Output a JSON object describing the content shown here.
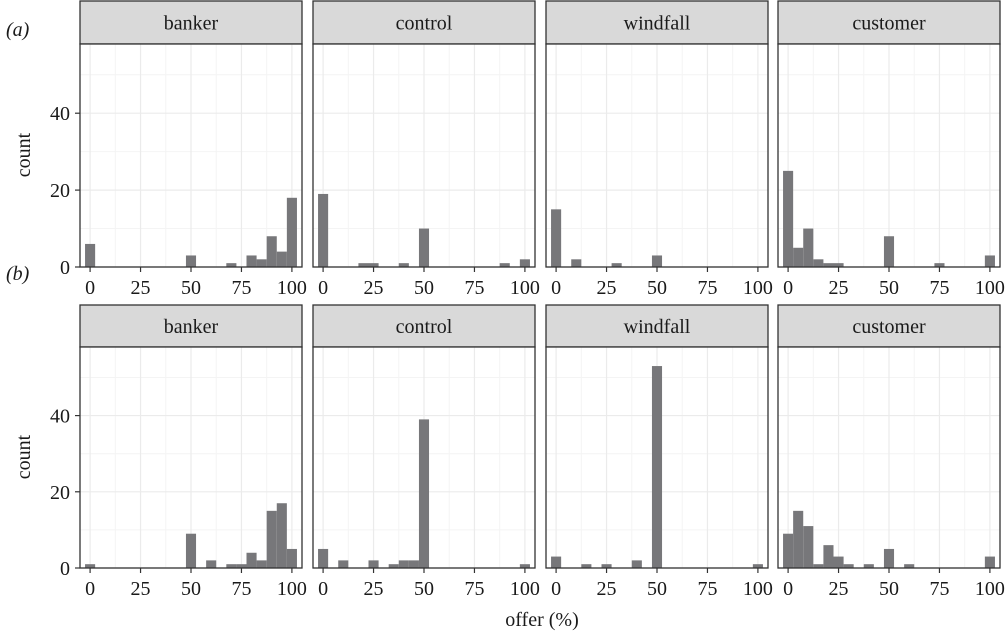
{
  "chart_data": [
    {
      "type": "bar",
      "panel_label": "(a)",
      "ylabel": "count",
      "ylim": [
        0,
        58
      ],
      "yticks": [
        0,
        20,
        40
      ],
      "xlim": [
        -5,
        105
      ],
      "xticks": [
        0,
        25,
        50,
        75,
        100
      ],
      "bin_width": 5,
      "facets": [
        {
          "name": "banker",
          "bars": [
            {
              "x": 0,
              "y": 6
            },
            {
              "x": 50,
              "y": 3
            },
            {
              "x": 70,
              "y": 1
            },
            {
              "x": 80,
              "y": 3
            },
            {
              "x": 85,
              "y": 2
            },
            {
              "x": 90,
              "y": 8
            },
            {
              "x": 95,
              "y": 4
            },
            {
              "x": 100,
              "y": 18
            }
          ]
        },
        {
          "name": "control",
          "bars": [
            {
              "x": 0,
              "y": 19
            },
            {
              "x": 20,
              "y": 1
            },
            {
              "x": 25,
              "y": 1
            },
            {
              "x": 40,
              "y": 1
            },
            {
              "x": 50,
              "y": 10
            },
            {
              "x": 90,
              "y": 1
            },
            {
              "x": 100,
              "y": 2
            }
          ]
        },
        {
          "name": "windfall",
          "bars": [
            {
              "x": 0,
              "y": 15
            },
            {
              "x": 10,
              "y": 2
            },
            {
              "x": 30,
              "y": 1
            },
            {
              "x": 50,
              "y": 3
            }
          ]
        },
        {
          "name": "customer",
          "bars": [
            {
              "x": 0,
              "y": 25
            },
            {
              "x": 5,
              "y": 5
            },
            {
              "x": 10,
              "y": 10
            },
            {
              "x": 15,
              "y": 2
            },
            {
              "x": 20,
              "y": 1
            },
            {
              "x": 25,
              "y": 1
            },
            {
              "x": 50,
              "y": 8
            },
            {
              "x": 75,
              "y": 1
            },
            {
              "x": 100,
              "y": 3
            }
          ]
        }
      ]
    },
    {
      "type": "bar",
      "panel_label": "(b)",
      "ylabel": "count",
      "xlabel": "offer (%)",
      "ylim": [
        0,
        58
      ],
      "yticks": [
        0,
        20,
        40
      ],
      "xlim": [
        -5,
        105
      ],
      "xticks": [
        0,
        25,
        50,
        75,
        100
      ],
      "bin_width": 5,
      "facets": [
        {
          "name": "banker",
          "bars": [
            {
              "x": 0,
              "y": 1
            },
            {
              "x": 50,
              "y": 9
            },
            {
              "x": 60,
              "y": 2
            },
            {
              "x": 70,
              "y": 1
            },
            {
              "x": 75,
              "y": 1
            },
            {
              "x": 80,
              "y": 4
            },
            {
              "x": 85,
              "y": 2
            },
            {
              "x": 90,
              "y": 15
            },
            {
              "x": 95,
              "y": 17
            },
            {
              "x": 100,
              "y": 5
            }
          ]
        },
        {
          "name": "control",
          "bars": [
            {
              "x": 0,
              "y": 5
            },
            {
              "x": 10,
              "y": 2
            },
            {
              "x": 25,
              "y": 2
            },
            {
              "x": 35,
              "y": 1
            },
            {
              "x": 40,
              "y": 2
            },
            {
              "x": 45,
              "y": 2
            },
            {
              "x": 50,
              "y": 39
            },
            {
              "x": 100,
              "y": 1
            }
          ]
        },
        {
          "name": "windfall",
          "bars": [
            {
              "x": 0,
              "y": 3
            },
            {
              "x": 15,
              "y": 1
            },
            {
              "x": 25,
              "y": 1
            },
            {
              "x": 40,
              "y": 2
            },
            {
              "x": 50,
              "y": 53
            },
            {
              "x": 100,
              "y": 1
            }
          ]
        },
        {
          "name": "customer",
          "bars": [
            {
              "x": 0,
              "y": 9
            },
            {
              "x": 5,
              "y": 15
            },
            {
              "x": 10,
              "y": 11
            },
            {
              "x": 15,
              "y": 1
            },
            {
              "x": 20,
              "y": 6
            },
            {
              "x": 25,
              "y": 3
            },
            {
              "x": 30,
              "y": 1
            },
            {
              "x": 40,
              "y": 1
            },
            {
              "x": 50,
              "y": 5
            },
            {
              "x": 60,
              "y": 1
            },
            {
              "x": 100,
              "y": 3
            }
          ]
        }
      ]
    }
  ],
  "colors": {
    "bar": "#77777a",
    "strip_fill": "#d9d9d9",
    "grid_major": "#ebebeb",
    "grid_minor": "#f4f4f4",
    "panel_border": "#333333"
  }
}
